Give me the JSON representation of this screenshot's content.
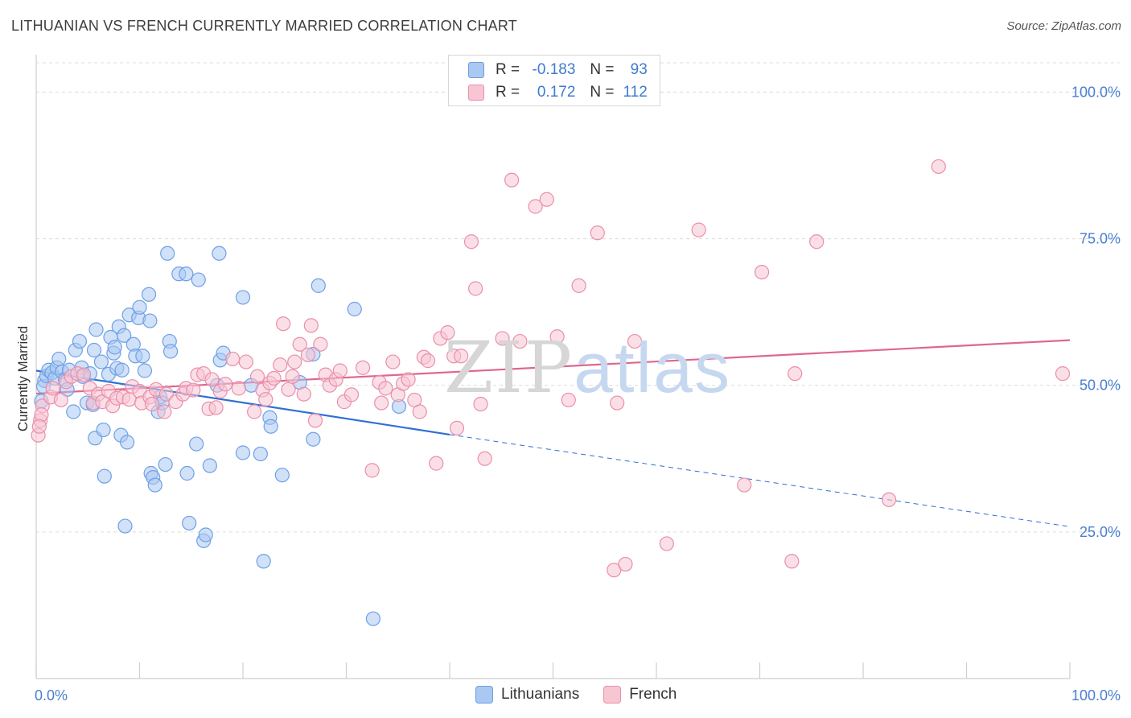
{
  "title": "LITHUANIAN VS FRENCH CURRENTLY MARRIED CORRELATION CHART",
  "source": "Source: ZipAtlas.com",
  "watermark": {
    "zip": "ZIP",
    "atlas": "atlas"
  },
  "legend": {
    "rows": [
      {
        "r_label": "R =",
        "r_value": "-0.183",
        "n_label": "N =",
        "n_value": "93",
        "color": "#a9c8f2",
        "border": "#6f9de0"
      },
      {
        "r_label": "R =",
        "r_value": "0.172",
        "n_label": "N =",
        "n_value": "112",
        "color": "#f8c5d3",
        "border": "#e98fab"
      }
    ]
  },
  "bottom_legend": [
    {
      "label": "Lithuanians",
      "color": "#a9c8f2",
      "border": "#6f9de0"
    },
    {
      "label": "French",
      "color": "#f8c5d3",
      "border": "#e98fab"
    }
  ],
  "chart_data": {
    "type": "scatter",
    "xlabel": "",
    "ylabel": "Currently Married",
    "xlim": [
      0,
      100
    ],
    "ylim": [
      0,
      105
    ],
    "x_tick_labels": [
      "0.0%",
      "100.0%"
    ],
    "y_ticks": [
      {
        "value": 25,
        "label": "25.0%"
      },
      {
        "value": 50,
        "label": "50.0%"
      },
      {
        "value": 75,
        "label": "75.0%"
      },
      {
        "value": 100,
        "label": "100.0%"
      }
    ],
    "grid": true,
    "series": [
      {
        "name": "Lithuanians",
        "color": "#6fa0e6",
        "fill": "#a9c8f2",
        "trend": {
          "x0": 0,
          "y0": 52.5,
          "x1": 40,
          "y1": 41.6,
          "dash_to_x": 100,
          "dash_to_y": 25.9,
          "color": "#2f6fd6"
        },
        "points": [
          [
            0.5,
            47.3
          ],
          [
            0.8,
            50.8
          ],
          [
            0.7,
            49.8
          ],
          [
            1.0,
            51.6
          ],
          [
            1.2,
            52.6
          ],
          [
            1.5,
            52.1
          ],
          [
            1.8,
            51.2
          ],
          [
            2.0,
            53.0
          ],
          [
            2.2,
            54.5
          ],
          [
            2.5,
            52.3
          ],
          [
            2.8,
            51.0
          ],
          [
            3.0,
            49.3
          ],
          [
            3.2,
            52.6
          ],
          [
            3.6,
            45.5
          ],
          [
            3.8,
            56.0
          ],
          [
            4.2,
            57.5
          ],
          [
            4.4,
            53.0
          ],
          [
            4.5,
            51.5
          ],
          [
            4.9,
            47.0
          ],
          [
            5.2,
            52.0
          ],
          [
            5.5,
            46.7
          ],
          [
            5.6,
            56.0
          ],
          [
            5.7,
            41.0
          ],
          [
            5.8,
            59.5
          ],
          [
            6.3,
            54.0
          ],
          [
            6.5,
            42.4
          ],
          [
            6.6,
            34.5
          ],
          [
            7.0,
            51.9
          ],
          [
            7.2,
            58.2
          ],
          [
            7.5,
            55.5
          ],
          [
            7.6,
            56.5
          ],
          [
            7.8,
            52.9
          ],
          [
            8.0,
            60.0
          ],
          [
            8.2,
            41.5
          ],
          [
            8.3,
            52.6
          ],
          [
            8.5,
            58.5
          ],
          [
            8.8,
            40.3
          ],
          [
            8.6,
            26.0
          ],
          [
            9.0,
            62.0
          ],
          [
            9.4,
            57.0
          ],
          [
            9.6,
            55.0
          ],
          [
            9.9,
            61.5
          ],
          [
            10.0,
            63.3
          ],
          [
            10.3,
            55.0
          ],
          [
            10.5,
            52.5
          ],
          [
            10.9,
            65.5
          ],
          [
            11.0,
            61.0
          ],
          [
            11.1,
            35.0
          ],
          [
            11.3,
            34.3
          ],
          [
            11.5,
            33.0
          ],
          [
            11.8,
            45.5
          ],
          [
            12.0,
            48.0
          ],
          [
            12.2,
            47.0
          ],
          [
            12.5,
            36.5
          ],
          [
            12.7,
            72.5
          ],
          [
            12.9,
            57.5
          ],
          [
            13.0,
            55.8
          ],
          [
            13.8,
            69.0
          ],
          [
            14.5,
            69.0
          ],
          [
            14.6,
            35.0
          ],
          [
            14.8,
            26.5
          ],
          [
            15.5,
            40.0
          ],
          [
            15.7,
            68.0
          ],
          [
            16.2,
            23.5
          ],
          [
            16.4,
            24.5
          ],
          [
            16.8,
            36.3
          ],
          [
            17.5,
            50.0
          ],
          [
            17.7,
            72.5
          ],
          [
            17.8,
            54.3
          ],
          [
            18.1,
            55.5
          ],
          [
            20.0,
            65.0
          ],
          [
            20.0,
            38.5
          ],
          [
            20.8,
            50.0
          ],
          [
            21.7,
            38.3
          ],
          [
            22.0,
            20.0
          ],
          [
            22.6,
            44.5
          ],
          [
            22.7,
            43.0
          ],
          [
            23.8,
            34.7
          ],
          [
            25.5,
            50.5
          ],
          [
            26.8,
            55.3
          ],
          [
            26.8,
            40.8
          ],
          [
            27.3,
            67.0
          ],
          [
            30.8,
            63.0
          ],
          [
            32.6,
            10.2
          ],
          [
            35.1,
            46.4
          ]
        ]
      },
      {
        "name": "French",
        "color": "#e98fab",
        "fill": "#f8c5d3",
        "trend": {
          "x0": 0,
          "y0": 48.6,
          "x1": 100,
          "y1": 57.7,
          "color": "#e0668f"
        },
        "points": [
          [
            0.2,
            41.5
          ],
          [
            0.4,
            44.0
          ],
          [
            0.6,
            46.5
          ],
          [
            1.4,
            48.0
          ],
          [
            1.6,
            49.5
          ],
          [
            2.4,
            47.5
          ],
          [
            2.9,
            50.6
          ],
          [
            3.4,
            51.5
          ],
          [
            4.0,
            52.0
          ],
          [
            4.6,
            51.8
          ],
          [
            5.2,
            49.5
          ],
          [
            5.5,
            47.0
          ],
          [
            6.0,
            48.5
          ],
          [
            6.4,
            47.2
          ],
          [
            7.0,
            49.0
          ],
          [
            7.4,
            46.5
          ],
          [
            7.8,
            47.8
          ],
          [
            8.4,
            48.0
          ],
          [
            9.0,
            47.6
          ],
          [
            9.3,
            49.8
          ],
          [
            10.0,
            49.0
          ],
          [
            10.2,
            47.0
          ],
          [
            11.0,
            48.0
          ],
          [
            11.2,
            46.8
          ],
          [
            11.6,
            49.3
          ],
          [
            12.4,
            45.5
          ],
          [
            12.6,
            48.5
          ],
          [
            13.5,
            47.2
          ],
          [
            14.2,
            48.5
          ],
          [
            14.5,
            49.5
          ],
          [
            15.2,
            49.2
          ],
          [
            15.6,
            51.8
          ],
          [
            16.2,
            52.0
          ],
          [
            16.7,
            46.0
          ],
          [
            17.4,
            46.2
          ],
          [
            17.8,
            49.0
          ],
          [
            18.3,
            50.2
          ],
          [
            19.0,
            54.5
          ],
          [
            19.6,
            49.5
          ],
          [
            20.3,
            54.0
          ],
          [
            21.1,
            45.5
          ],
          [
            21.4,
            51.5
          ],
          [
            21.9,
            49.2
          ],
          [
            22.2,
            47.6
          ],
          [
            22.6,
            50.4
          ],
          [
            23.0,
            51.2
          ],
          [
            23.6,
            53.5
          ],
          [
            23.9,
            60.5
          ],
          [
            24.4,
            49.3
          ],
          [
            24.8,
            51.5
          ],
          [
            25.0,
            54.0
          ],
          [
            25.5,
            57.0
          ],
          [
            25.9,
            48.5
          ],
          [
            26.3,
            55.2
          ],
          [
            26.6,
            60.2
          ],
          [
            27.0,
            44.0
          ],
          [
            28.0,
            51.8
          ],
          [
            28.4,
            50.0
          ],
          [
            29.0,
            51.0
          ],
          [
            29.4,
            52.5
          ],
          [
            29.8,
            47.2
          ],
          [
            30.5,
            48.4
          ],
          [
            31.6,
            53.0
          ],
          [
            32.5,
            35.5
          ],
          [
            33.2,
            50.5
          ],
          [
            33.4,
            47.0
          ],
          [
            33.8,
            49.5
          ],
          [
            34.5,
            54.0
          ],
          [
            35.0,
            48.4
          ],
          [
            35.5,
            50.3
          ],
          [
            36.0,
            51.0
          ],
          [
            36.6,
            47.5
          ],
          [
            37.1,
            45.5
          ],
          [
            37.5,
            54.8
          ],
          [
            37.9,
            54.2
          ],
          [
            38.7,
            36.7
          ],
          [
            39.1,
            58.0
          ],
          [
            39.8,
            59.0
          ],
          [
            40.4,
            55.0
          ],
          [
            40.7,
            42.7
          ],
          [
            41.1,
            55.0
          ],
          [
            42.1,
            74.5
          ],
          [
            42.5,
            66.5
          ],
          [
            43.0,
            46.8
          ],
          [
            43.4,
            37.5
          ],
          [
            45.1,
            58.0
          ],
          [
            46.0,
            85.0
          ],
          [
            46.8,
            57.5
          ],
          [
            48.3,
            80.5
          ],
          [
            49.4,
            81.7
          ],
          [
            50.4,
            58.3
          ],
          [
            51.5,
            47.5
          ],
          [
            52.5,
            67.0
          ],
          [
            54.3,
            76.0
          ],
          [
            55.9,
            18.5
          ],
          [
            56.2,
            47.0
          ],
          [
            57.0,
            19.5
          ],
          [
            57.9,
            57.5
          ],
          [
            61.0,
            23.0
          ],
          [
            64.1,
            76.5
          ],
          [
            68.5,
            33.0
          ],
          [
            70.2,
            69.3
          ],
          [
            73.1,
            20.0
          ],
          [
            73.4,
            52.0
          ],
          [
            75.5,
            74.5
          ],
          [
            82.5,
            30.5
          ],
          [
            87.3,
            87.3
          ],
          [
            99.3,
            52.0
          ],
          [
            0.5,
            45.0
          ],
          [
            0.3,
            43.0
          ],
          [
            17.0,
            51.0
          ],
          [
            27.5,
            57.0
          ]
        ]
      }
    ]
  }
}
